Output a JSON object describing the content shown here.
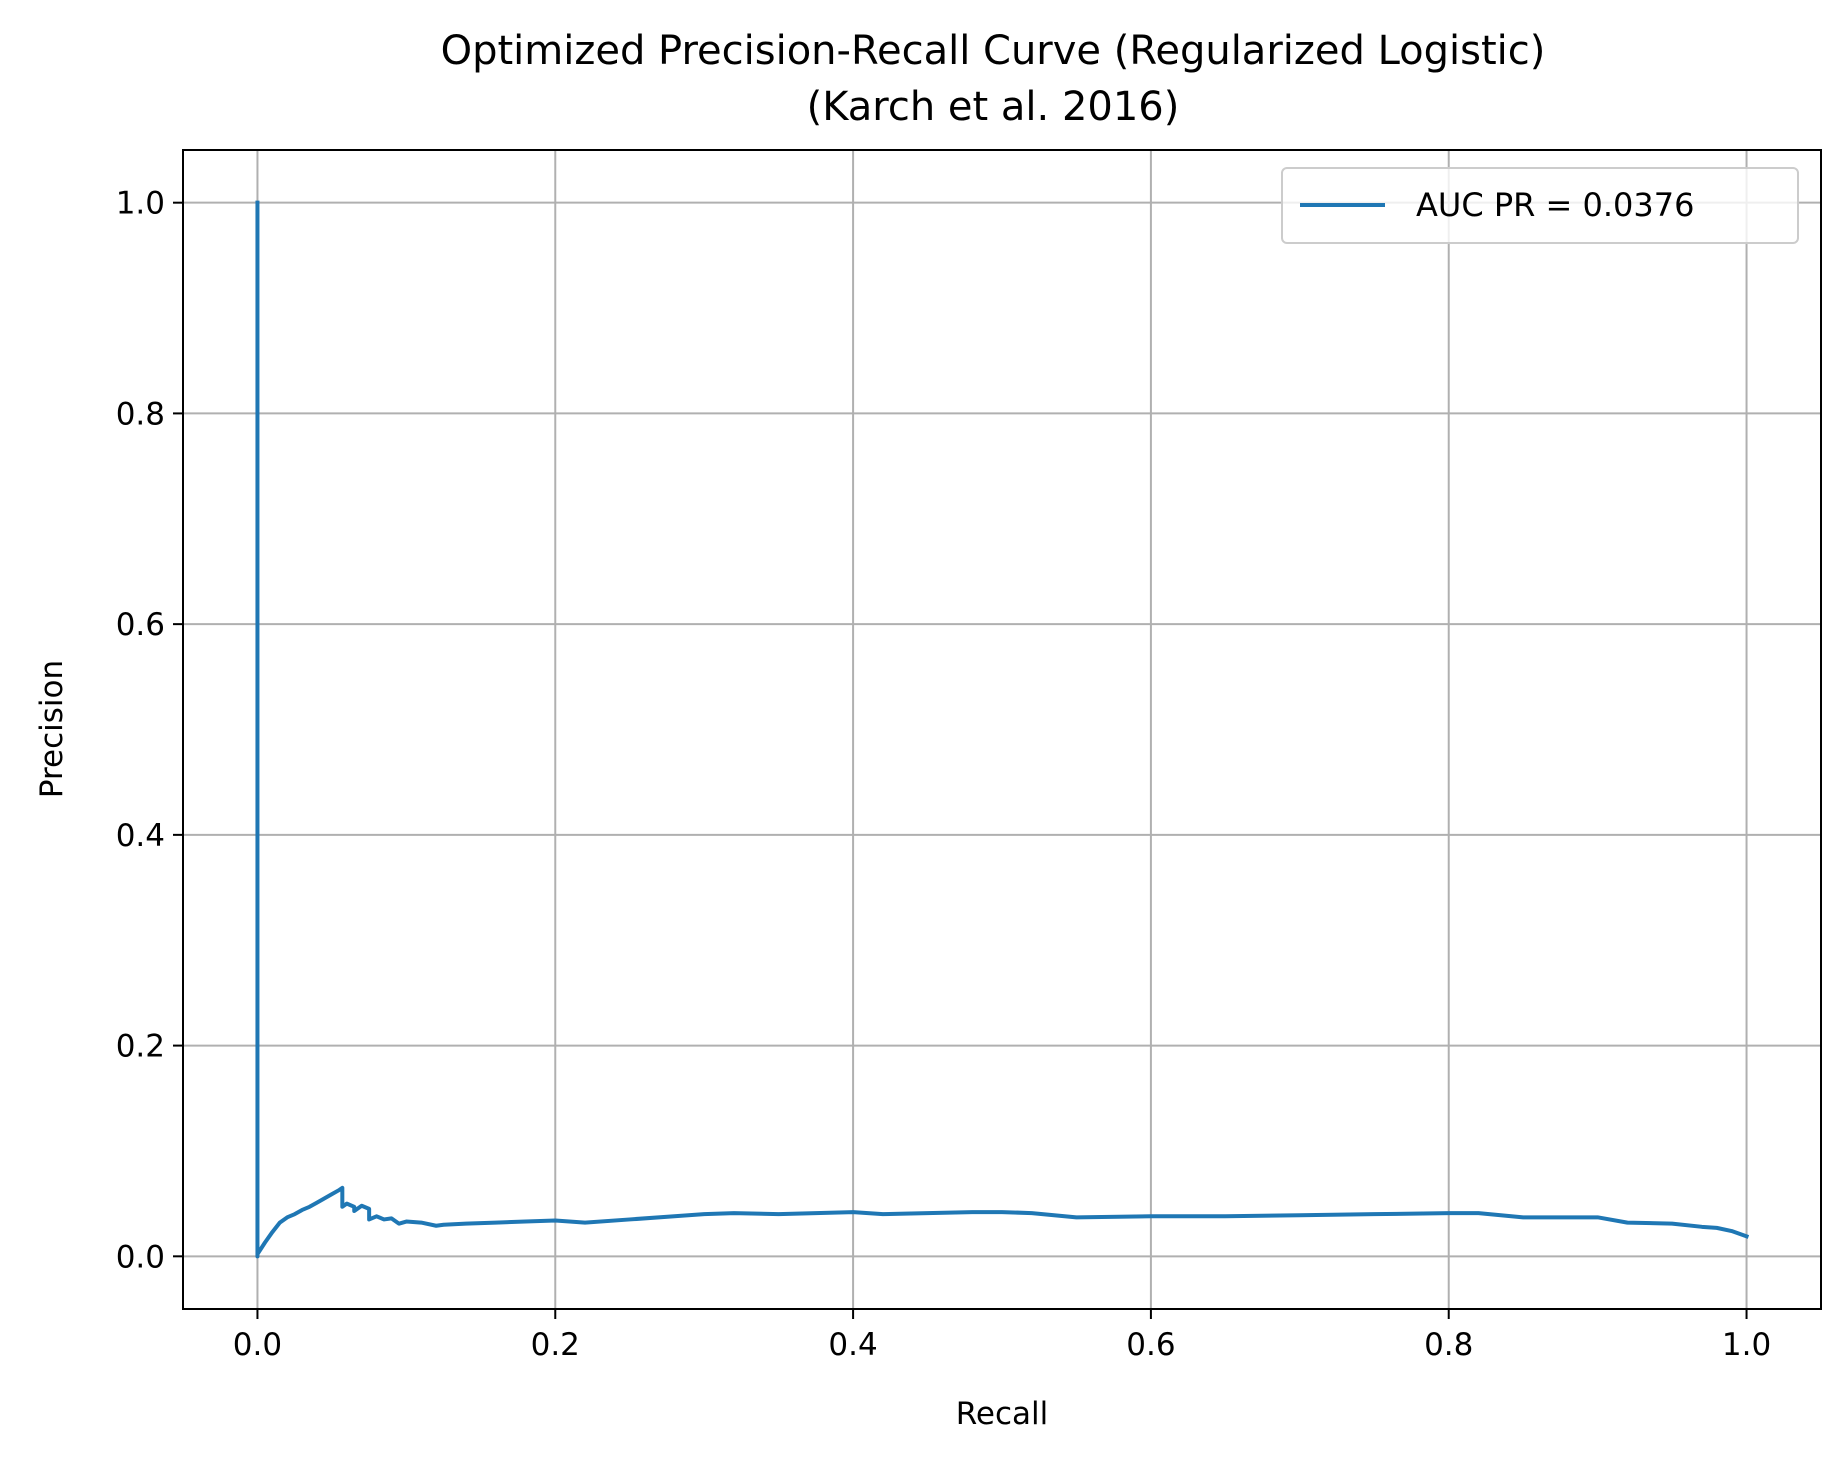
{
  "chart_data": {
    "type": "line",
    "title_line1": "Optimized Precision-Recall Curve (Regularized Logistic)",
    "title_line2": "(Karch et al. 2016)",
    "xlabel": "Recall",
    "ylabel": "Precision",
    "xlim": [
      -0.05,
      1.05
    ],
    "ylim": [
      -0.05,
      1.05
    ],
    "grid": true,
    "legend_position": "upper right",
    "xticks": [
      "0.0",
      "0.2",
      "0.4",
      "0.6",
      "0.8",
      "1.0"
    ],
    "yticks": [
      "0.0",
      "0.2",
      "0.4",
      "0.6",
      "0.8",
      "1.0"
    ],
    "series": [
      {
        "name": "AUC PR = 0.0376",
        "color": "#1f77b4",
        "x": [
          0.0,
          0.0,
          0.0,
          0.005,
          0.01,
          0.015,
          0.02,
          0.025,
          0.03,
          0.035,
          0.04,
          0.045,
          0.05,
          0.055,
          0.057,
          0.057,
          0.06,
          0.065,
          0.065,
          0.07,
          0.075,
          0.075,
          0.08,
          0.085,
          0.09,
          0.095,
          0.1,
          0.11,
          0.12,
          0.125,
          0.14,
          0.16,
          0.18,
          0.2,
          0.22,
          0.25,
          0.28,
          0.3,
          0.32,
          0.35,
          0.4,
          0.42,
          0.45,
          0.48,
          0.5,
          0.52,
          0.55,
          0.6,
          0.65,
          0.7,
          0.75,
          0.8,
          0.82,
          0.85,
          0.9,
          0.92,
          0.95,
          0.97,
          0.98,
          0.99,
          1.0
        ],
        "y": [
          1.0,
          0.0,
          0.002,
          0.013,
          0.023,
          0.032,
          0.037,
          0.04,
          0.044,
          0.047,
          0.051,
          0.055,
          0.059,
          0.063,
          0.065,
          0.047,
          0.05,
          0.047,
          0.043,
          0.048,
          0.045,
          0.035,
          0.038,
          0.035,
          0.036,
          0.031,
          0.033,
          0.032,
          0.029,
          0.03,
          0.031,
          0.032,
          0.033,
          0.034,
          0.032,
          0.035,
          0.038,
          0.04,
          0.041,
          0.04,
          0.042,
          0.04,
          0.041,
          0.042,
          0.042,
          0.041,
          0.037,
          0.038,
          0.038,
          0.039,
          0.04,
          0.041,
          0.041,
          0.037,
          0.037,
          0.032,
          0.031,
          0.028,
          0.027,
          0.024,
          0.019
        ]
      }
    ]
  }
}
